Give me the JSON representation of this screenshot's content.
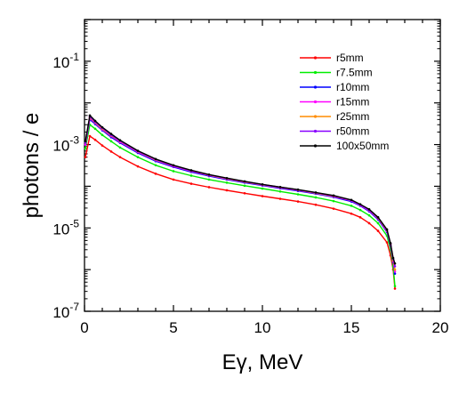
{
  "chart_data": {
    "type": "line",
    "xlabel": "Eγ, MeV",
    "ylabel": "photons / e",
    "xlim": [
      0,
      20
    ],
    "ylim": [
      1e-07,
      1
    ],
    "yscale": "log",
    "grid": false,
    "legend_position": "top-right",
    "xticks": [
      {
        "value": 0,
        "label": "0"
      },
      {
        "value": 5,
        "label": "5"
      },
      {
        "value": 10,
        "label": "10"
      },
      {
        "value": 15,
        "label": "15"
      },
      {
        "value": 20,
        "label": "20"
      }
    ],
    "yticks": [
      {
        "value": 1e-07,
        "base": "10",
        "exp": "-7"
      },
      {
        "value": 1e-05,
        "base": "10",
        "exp": "-5"
      },
      {
        "value": 0.001,
        "base": "10",
        "exp": "-3"
      },
      {
        "value": 0.1,
        "base": "10",
        "exp": "-1"
      }
    ],
    "x": [
      0.05,
      0.3,
      0.6,
      1.0,
      1.5,
      2.0,
      3.0,
      4.0,
      5.0,
      6.0,
      7.0,
      8.0,
      9.0,
      10.0,
      11.0,
      12.0,
      13.0,
      14.0,
      15.0,
      15.5,
      16.0,
      16.5,
      17.0,
      17.2,
      17.35,
      17.45
    ],
    "series": [
      {
        "name": "r5mm",
        "color": "#ff0000",
        "y": [
          0.0005,
          0.0016,
          0.0013,
          0.00095,
          0.00068,
          0.0005,
          0.0003,
          0.0002,
          0.000145,
          0.000115,
          9.5e-05,
          8e-05,
          6.8e-05,
          5.8e-05,
          5e-05,
          4.3e-05,
          3.6e-05,
          2.9e-05,
          2.2e-05,
          1.8e-05,
          1.3e-05,
          8.5e-06,
          4.5e-06,
          2.2e-06,
          1e-06,
          3.5e-07
        ]
      },
      {
        "name": "r7.5mm",
        "color": "#00ee00",
        "y": [
          0.0008,
          0.003,
          0.0024,
          0.0017,
          0.0012,
          0.00085,
          0.0005,
          0.00032,
          0.00023,
          0.00018,
          0.000145,
          0.000122,
          0.000103,
          8.8e-05,
          7.5e-05,
          6.4e-05,
          5.4e-05,
          4.4e-05,
          3.4e-05,
          2.7e-05,
          2e-05,
          1.3e-05,
          6.5e-06,
          3e-06,
          1.2e-06,
          4e-07
        ]
      },
      {
        "name": "r10mm",
        "color": "#0000ff",
        "y": [
          0.001,
          0.004,
          0.0031,
          0.0022,
          0.0015,
          0.0011,
          0.00063,
          0.0004,
          0.00029,
          0.00022,
          0.000175,
          0.000145,
          0.000122,
          0.000104,
          8.9e-05,
          7.7e-05,
          6.6e-05,
          5.5e-05,
          4.3e-05,
          3.4e-05,
          2.5e-05,
          1.6e-05,
          8e-06,
          3.8e-06,
          1.5e-06,
          8e-07
        ]
      },
      {
        "name": "r15mm",
        "color": "#ff00ff",
        "y": [
          0.001,
          0.0043,
          0.0033,
          0.0023,
          0.0016,
          0.00115,
          0.00066,
          0.00042,
          0.0003,
          0.00023,
          0.000182,
          0.00015,
          0.000126,
          0.000107,
          9.2e-05,
          8e-05,
          6.8e-05,
          5.7e-05,
          4.5e-05,
          3.5e-05,
          2.6e-05,
          1.7e-05,
          8.5e-06,
          4e-06,
          1.6e-06,
          9e-07
        ]
      },
      {
        "name": "r25mm",
        "color": "#ff8c00",
        "y": [
          0.0011,
          0.0045,
          0.0034,
          0.0024,
          0.00165,
          0.0012,
          0.00068,
          0.00043,
          0.00031,
          0.000235,
          0.000186,
          0.000153,
          0.000128,
          0.000109,
          9.4e-05,
          8.1e-05,
          6.9e-05,
          5.8e-05,
          4.6e-05,
          3.6e-05,
          2.7e-05,
          1.75e-05,
          8.8e-06,
          4.1e-06,
          1.7e-06,
          1e-06
        ]
      },
      {
        "name": "r50mm",
        "color": "#8800ff",
        "y": [
          0.0011,
          0.0047,
          0.0035,
          0.0025,
          0.0017,
          0.00122,
          0.00069,
          0.00044,
          0.00031,
          0.000238,
          0.000188,
          0.000155,
          0.00013,
          0.00011,
          9.5e-05,
          8.2e-05,
          7e-05,
          5.9e-05,
          4.6e-05,
          3.6e-05,
          2.7e-05,
          1.8e-05,
          9e-06,
          4.2e-06,
          1.8e-06,
          1.2e-06
        ]
      },
      {
        "name": "100x50mm",
        "color": "#000000",
        "y": [
          0.0012,
          0.005,
          0.0037,
          0.0026,
          0.0018,
          0.00127,
          0.00071,
          0.00045,
          0.00032,
          0.000242,
          0.000191,
          0.000157,
          0.000131,
          0.000111,
          9.6e-05,
          8.3e-05,
          7.1e-05,
          6e-05,
          4.7e-05,
          3.7e-05,
          2.8e-05,
          1.8e-05,
          9.2e-06,
          4.3e-06,
          1.9e-06,
          1.4e-06
        ]
      }
    ]
  }
}
